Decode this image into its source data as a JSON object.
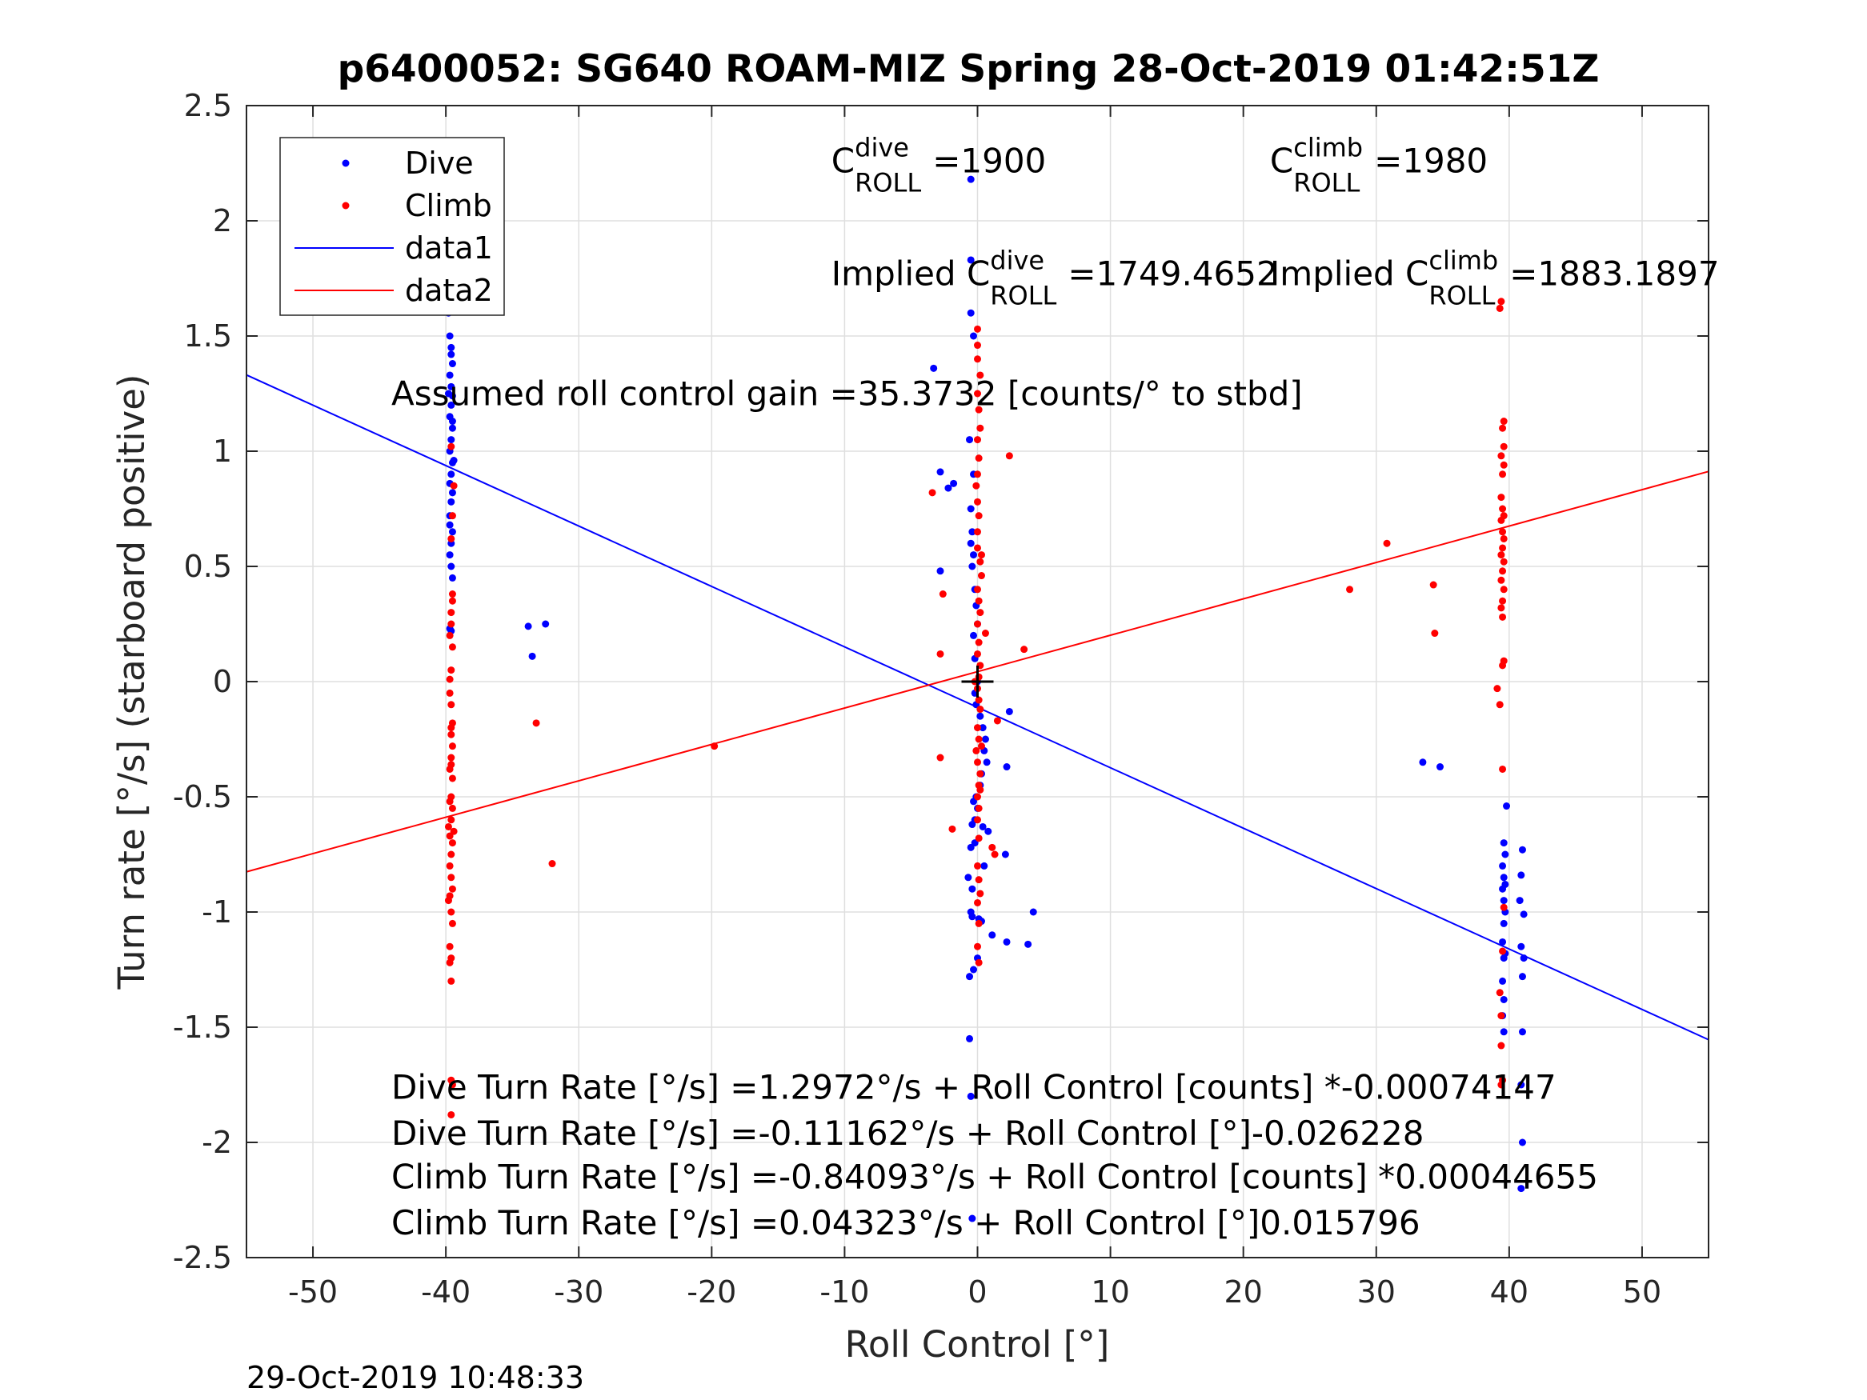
{
  "chart_data": {
    "type": "scatter",
    "title": "p6400052: SG640 ROAM-MIZ Spring 28-Oct-2019 01:42:51Z",
    "xlabel": "Roll Control [°]",
    "ylabel": "Turn rate [°/s] (starboard positive)",
    "xlim": [
      -55,
      55
    ],
    "ylim": [
      -2.5,
      2.5
    ],
    "xticks": [
      -50,
      -40,
      -30,
      -20,
      -10,
      0,
      10,
      20,
      30,
      40,
      50
    ],
    "xtick_labels": [
      "-50",
      "-40",
      "-30",
      "-20",
      "-10",
      "0",
      "10",
      "20",
      "30",
      "40",
      "50"
    ],
    "yticks": [
      -2.5,
      -2,
      -1.5,
      -1,
      -0.5,
      0,
      0.5,
      1,
      1.5,
      2,
      2.5
    ],
    "ytick_labels": [
      "-2.5",
      "-2",
      "-1.5",
      "-1",
      "-0.5",
      "0",
      "0.5",
      "1",
      "1.5",
      "2",
      "2.5"
    ],
    "grid": true,
    "legend": {
      "placement": "top-left",
      "entries": [
        "Dive",
        "Climb",
        "data1",
        "data2"
      ]
    },
    "colors": {
      "dive": "#0000ff",
      "climb": "#ff0000",
      "axes": "#262626",
      "grid": "#dfdfdf",
      "origin": "#000000"
    },
    "scatter_series": [
      {
        "name": "Dive",
        "points": [
          [
            -39.8,
            1.6
          ],
          [
            -39.7,
            1.5
          ],
          [
            -39.6,
            1.42
          ],
          [
            -39.5,
            1.38
          ],
          [
            -39.7,
            1.33
          ],
          [
            -39.6,
            1.28
          ],
          [
            -39.5,
            1.24
          ],
          [
            -39.6,
            1.2
          ],
          [
            -39.7,
            1.15
          ],
          [
            -39.5,
            1.1
          ],
          [
            -39.6,
            1.05
          ],
          [
            -39.7,
            1.0
          ],
          [
            -39.5,
            0.95
          ],
          [
            -39.6,
            0.9
          ],
          [
            -39.7,
            0.86
          ],
          [
            -39.5,
            0.82
          ],
          [
            -39.6,
            0.78
          ],
          [
            -39.7,
            0.72
          ],
          [
            -39.5,
            0.65
          ],
          [
            -39.6,
            0.6
          ],
          [
            -39.7,
            0.55
          ],
          [
            -39.6,
            0.5
          ],
          [
            -39.5,
            0.45
          ],
          [
            -39.7,
            0.23
          ],
          [
            -39.6,
            0.22
          ],
          [
            -39.6,
            1.45
          ],
          [
            -39.5,
            1.13
          ],
          [
            -39.4,
            0.96
          ],
          [
            -39.7,
            0.68
          ],
          [
            -39.8,
            1.25
          ],
          [
            -33.8,
            0.24
          ],
          [
            -32.5,
            0.25
          ],
          [
            -33.5,
            0.11
          ],
          [
            -0.5,
            2.18
          ],
          [
            -0.5,
            1.83
          ],
          [
            -0.5,
            1.6
          ],
          [
            -0.3,
            1.5
          ],
          [
            -3.3,
            1.36
          ],
          [
            -0.6,
            1.05
          ],
          [
            -2.8,
            0.91
          ],
          [
            -1.8,
            0.86
          ],
          [
            -2.2,
            0.84
          ],
          [
            -0.3,
            0.9
          ],
          [
            -0.5,
            0.75
          ],
          [
            -0.4,
            0.65
          ],
          [
            -0.5,
            0.6
          ],
          [
            -0.3,
            0.55
          ],
          [
            -0.4,
            0.5
          ],
          [
            -2.8,
            0.48
          ],
          [
            -0.2,
            0.4
          ],
          [
            -0.1,
            0.33
          ],
          [
            0.0,
            0.25
          ],
          [
            -0.3,
            0.2
          ],
          [
            -0.2,
            0.1
          ],
          [
            0.0,
            0.0
          ],
          [
            -0.2,
            -0.05
          ],
          [
            -0.1,
            -0.1
          ],
          [
            0.2,
            -0.15
          ],
          [
            0.4,
            -0.2
          ],
          [
            2.4,
            -0.13
          ],
          [
            0.6,
            -0.25
          ],
          [
            0.5,
            -0.3
          ],
          [
            0.7,
            -0.35
          ],
          [
            2.2,
            -0.37
          ],
          [
            0.3,
            -0.4
          ],
          [
            0.2,
            -0.45
          ],
          [
            -0.1,
            -0.5
          ],
          [
            -0.3,
            -0.52
          ],
          [
            0.0,
            -0.55
          ],
          [
            -0.2,
            -0.6
          ],
          [
            -0.4,
            -0.62
          ],
          [
            0.4,
            -0.63
          ],
          [
            0.8,
            -0.65
          ],
          [
            -0.2,
            -0.7
          ],
          [
            -0.5,
            -0.72
          ],
          [
            2.1,
            -0.75
          ],
          [
            0.5,
            -0.8
          ],
          [
            -0.7,
            -0.85
          ],
          [
            -0.4,
            -0.9
          ],
          [
            -0.5,
            -1.0
          ],
          [
            -0.4,
            -1.02
          ],
          [
            0.1,
            -1.03
          ],
          [
            0.3,
            -1.04
          ],
          [
            4.2,
            -1.0
          ],
          [
            1.1,
            -1.1
          ],
          [
            2.2,
            -1.13
          ],
          [
            3.8,
            -1.14
          ],
          [
            0.0,
            -1.2
          ],
          [
            -0.3,
            -1.25
          ],
          [
            -0.6,
            -1.28
          ],
          [
            -0.6,
            -1.55
          ],
          [
            -0.5,
            -1.8
          ],
          [
            -0.4,
            -2.33
          ],
          [
            39.8,
            -0.54
          ],
          [
            39.6,
            -0.7
          ],
          [
            39.7,
            -0.75
          ],
          [
            39.5,
            -0.8
          ],
          [
            39.6,
            -0.85
          ],
          [
            39.7,
            -0.88
          ],
          [
            39.5,
            -0.9
          ],
          [
            39.6,
            -0.95
          ],
          [
            39.7,
            -1.0
          ],
          [
            39.6,
            -1.05
          ],
          [
            39.5,
            -1.13
          ],
          [
            39.7,
            -1.18
          ],
          [
            39.6,
            -1.2
          ],
          [
            39.5,
            -1.3
          ],
          [
            39.6,
            -1.38
          ],
          [
            39.5,
            -1.45
          ],
          [
            39.6,
            -1.52
          ],
          [
            41.0,
            -0.73
          ],
          [
            40.9,
            -0.84
          ],
          [
            40.8,
            -0.95
          ],
          [
            41.1,
            -1.01
          ],
          [
            40.9,
            -1.15
          ],
          [
            41.1,
            -1.2
          ],
          [
            41.0,
            -1.28
          ],
          [
            41.0,
            -1.52
          ],
          [
            40.9,
            -1.75
          ],
          [
            41.0,
            -2.0
          ],
          [
            40.9,
            -2.2
          ],
          [
            33.5,
            -0.35
          ],
          [
            34.8,
            -0.37
          ]
        ]
      },
      {
        "name": "Climb",
        "points": [
          [
            -39.6,
            1.02
          ],
          [
            -39.4,
            0.85
          ],
          [
            -39.5,
            0.72
          ],
          [
            -39.6,
            0.62
          ],
          [
            -39.5,
            0.38
          ],
          [
            -39.5,
            0.35
          ],
          [
            -39.6,
            0.3
          ],
          [
            -39.6,
            0.25
          ],
          [
            -39.7,
            0.2
          ],
          [
            -39.5,
            0.15
          ],
          [
            -39.6,
            0.05
          ],
          [
            -39.7,
            0.01
          ],
          [
            -39.7,
            -0.05
          ],
          [
            -39.6,
            -0.1
          ],
          [
            -39.5,
            -0.18
          ],
          [
            -39.6,
            -0.2
          ],
          [
            -39.6,
            -0.23
          ],
          [
            -39.5,
            -0.28
          ],
          [
            -39.6,
            -0.33
          ],
          [
            -39.7,
            -0.38
          ],
          [
            -39.5,
            -0.42
          ],
          [
            -39.6,
            -0.5
          ],
          [
            -39.7,
            -0.52
          ],
          [
            -39.5,
            -0.55
          ],
          [
            -39.6,
            -0.6
          ],
          [
            -39.8,
            -0.63
          ],
          [
            -39.7,
            -0.67
          ],
          [
            -39.5,
            -0.7
          ],
          [
            -39.6,
            -0.75
          ],
          [
            -39.7,
            -0.8
          ],
          [
            -39.6,
            -0.85
          ],
          [
            -39.5,
            -0.9
          ],
          [
            -39.7,
            -0.93
          ],
          [
            -39.8,
            -0.95
          ],
          [
            -39.6,
            -1.0
          ],
          [
            -39.5,
            -1.05
          ],
          [
            -39.7,
            -1.15
          ],
          [
            -39.6,
            -1.2
          ],
          [
            -39.7,
            -1.22
          ],
          [
            -39.6,
            -1.3
          ],
          [
            -39.6,
            -1.73
          ],
          [
            -39.5,
            -1.75
          ],
          [
            -39.6,
            -1.88
          ],
          [
            -39.6,
            -0.36
          ],
          [
            -39.4,
            -0.65
          ],
          [
            -33.2,
            -0.18
          ],
          [
            -32.0,
            -0.79
          ],
          [
            -19.8,
            -0.28
          ],
          [
            0.0,
            1.53
          ],
          [
            0.0,
            1.46
          ],
          [
            0.0,
            1.4
          ],
          [
            0.2,
            1.33
          ],
          [
            0.0,
            1.25
          ],
          [
            0.1,
            1.18
          ],
          [
            0.2,
            1.1
          ],
          [
            0.0,
            1.05
          ],
          [
            0.1,
            0.97
          ],
          [
            2.4,
            0.98
          ],
          [
            0.0,
            0.9
          ],
          [
            -0.1,
            0.85
          ],
          [
            -3.4,
            0.82
          ],
          [
            0.0,
            0.78
          ],
          [
            0.1,
            0.72
          ],
          [
            0.0,
            0.65
          ],
          [
            0.0,
            0.58
          ],
          [
            0.2,
            0.52
          ],
          [
            0.3,
            0.46
          ],
          [
            0.0,
            0.4
          ],
          [
            -2.6,
            0.38
          ],
          [
            0.1,
            0.35
          ],
          [
            0.2,
            0.3
          ],
          [
            0.0,
            0.25
          ],
          [
            0.6,
            0.21
          ],
          [
            0.1,
            0.17
          ],
          [
            0.0,
            0.12
          ],
          [
            -2.8,
            0.12
          ],
          [
            3.5,
            0.14
          ],
          [
            0.2,
            0.07
          ],
          [
            0.1,
            0.02
          ],
          [
            0.0,
            -0.03
          ],
          [
            0.1,
            -0.08
          ],
          [
            0.2,
            -0.12
          ],
          [
            1.5,
            -0.17
          ],
          [
            0.0,
            -0.2
          ],
          [
            0.1,
            -0.25
          ],
          [
            0.3,
            -0.28
          ],
          [
            -0.1,
            -0.3
          ],
          [
            0.0,
            -0.35
          ],
          [
            -2.8,
            -0.33
          ],
          [
            0.2,
            -0.4
          ],
          [
            0.1,
            -0.45
          ],
          [
            0.0,
            -0.5
          ],
          [
            0.1,
            -0.55
          ],
          [
            0.0,
            -0.6
          ],
          [
            -1.9,
            -0.64
          ],
          [
            0.1,
            -0.68
          ],
          [
            1.1,
            -0.72
          ],
          [
            1.3,
            -0.75
          ],
          [
            0.0,
            -0.8
          ],
          [
            0.1,
            -0.86
          ],
          [
            0.2,
            -0.92
          ],
          [
            0.0,
            -0.96
          ],
          [
            0.1,
            -1.05
          ],
          [
            0.0,
            -1.15
          ],
          [
            0.1,
            -1.22
          ],
          [
            0.2,
            -0.47
          ],
          [
            0.3,
            0.55
          ],
          [
            -0.2,
            0.0
          ],
          [
            28.0,
            0.4
          ],
          [
            30.8,
            0.6
          ],
          [
            34.3,
            0.42
          ],
          [
            34.4,
            0.21
          ],
          [
            39.4,
            1.65
          ],
          [
            39.3,
            1.62
          ],
          [
            39.6,
            1.13
          ],
          [
            39.5,
            1.1
          ],
          [
            39.6,
            1.02
          ],
          [
            39.4,
            0.98
          ],
          [
            39.6,
            0.94
          ],
          [
            39.5,
            0.9
          ],
          [
            39.4,
            0.8
          ],
          [
            39.5,
            0.75
          ],
          [
            39.6,
            0.72
          ],
          [
            39.4,
            0.7
          ],
          [
            39.5,
            0.65
          ],
          [
            39.6,
            0.62
          ],
          [
            39.5,
            0.58
          ],
          [
            39.4,
            0.55
          ],
          [
            39.6,
            0.52
          ],
          [
            39.5,
            0.48
          ],
          [
            39.4,
            0.44
          ],
          [
            39.6,
            0.4
          ],
          [
            39.5,
            0.35
          ],
          [
            39.4,
            0.32
          ],
          [
            39.5,
            0.28
          ],
          [
            39.6,
            0.09
          ],
          [
            39.5,
            0.07
          ],
          [
            39.1,
            -0.03
          ],
          [
            39.3,
            -0.1
          ],
          [
            39.5,
            -0.38
          ],
          [
            39.6,
            -0.98
          ],
          [
            39.5,
            -1.17
          ],
          [
            39.3,
            -1.35
          ],
          [
            39.4,
            -1.45
          ],
          [
            39.4,
            -1.58
          ],
          [
            39.5,
            -1.73
          ],
          [
            39.4,
            -1.75
          ]
        ]
      }
    ],
    "line_series": [
      {
        "name": "data1",
        "intercept": -0.11162,
        "slope": -0.026228
      },
      {
        "name": "data2",
        "intercept": 0.04323,
        "slope": 0.015796
      }
    ],
    "annotations": [
      {
        "id": "c_roll_dive",
        "base": "C",
        "sup": "dive",
        "sub": "ROLL",
        "value": "=1900",
        "x": -11.0,
        "y": 2.21
      },
      {
        "id": "c_roll_climb",
        "base": "C",
        "sup": "climb",
        "sub": "ROLL",
        "value": "=1980",
        "x": 22.0,
        "y": 2.21
      },
      {
        "id": "implied_dive",
        "base": "Implied C",
        "sup": "dive",
        "sub": "ROLL",
        "value": "=1749.4652",
        "x": -11.0,
        "y": 1.72
      },
      {
        "id": "implied_climb",
        "base": "Implied C",
        "sup": "climb",
        "sub": "ROLL",
        "value": "=1883.1897",
        "x": 22.0,
        "y": 1.72
      },
      {
        "id": "gain",
        "text": "Assumed roll control gain =35.3732 [counts/° to stbd]",
        "x": -44.1,
        "y": 1.2
      },
      {
        "id": "eq1",
        "text": "Dive Turn Rate [°/s] =1.2972°/s + Roll Control [counts] *-0.00074147",
        "x": -44.1,
        "y": -1.81
      },
      {
        "id": "eq2",
        "text": "Dive Turn Rate [°/s] =-0.11162°/s + Roll Control [°]-0.026228",
        "x": -44.1,
        "y": -2.01
      },
      {
        "id": "eq3",
        "text": "Climb Turn Rate [°/s] =-0.84093°/s + Roll Control [counts] *0.00044655",
        "x": -44.1,
        "y": -2.2
      },
      {
        "id": "eq4",
        "text": "Climb Turn Rate [°/s] =0.04323°/s + Roll Control [°]0.015796",
        "x": -44.1,
        "y": -2.4
      }
    ]
  },
  "footer": {
    "timestamp": "29-Oct-2019 10:48:33"
  }
}
